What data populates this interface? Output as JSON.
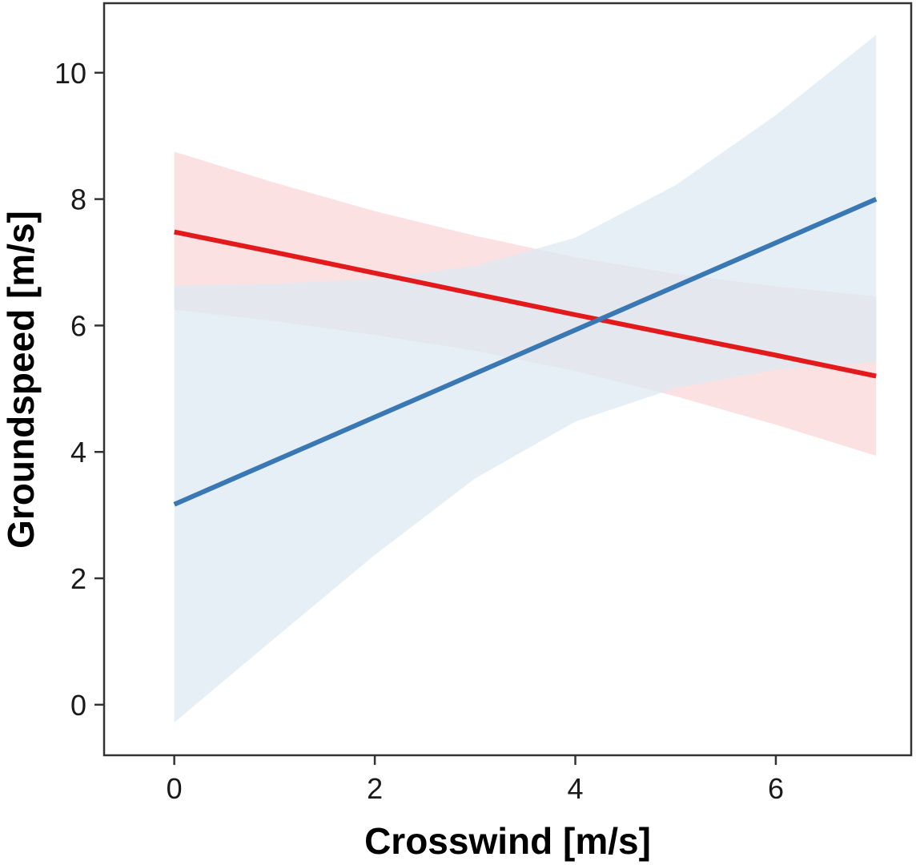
{
  "chart_data": {
    "type": "line",
    "title": "",
    "xlabel": "Crosswind [m/s]",
    "ylabel": "Groundspeed [m/s]",
    "xlim": [
      -0.7,
      7.35
    ],
    "ylim": [
      -0.8,
      11.1
    ],
    "xticks": [
      0,
      2,
      4,
      6
    ],
    "yticks": [
      0,
      2,
      4,
      6,
      8,
      10
    ],
    "grid": false,
    "legend": "none",
    "x": [
      0,
      1,
      2,
      3,
      4,
      5,
      6,
      7
    ],
    "series": [
      {
        "name": "red",
        "color": "#e31a1c",
        "band_color": "#fbd5d7",
        "values": [
          7.48,
          7.16,
          6.83,
          6.5,
          6.17,
          5.85,
          5.53,
          5.2
        ],
        "lower": [
          6.25,
          6.07,
          5.85,
          5.6,
          5.28,
          4.88,
          4.43,
          3.94
        ],
        "upper": [
          8.75,
          8.26,
          7.81,
          7.42,
          7.08,
          6.82,
          6.62,
          6.46
        ]
      },
      {
        "name": "blue",
        "color": "#3a78b4",
        "band_color": "#dde9f3",
        "values": [
          3.17,
          3.86,
          4.55,
          5.24,
          5.93,
          6.62,
          7.31,
          8.0
        ],
        "lower": [
          -0.28,
          1.05,
          2.37,
          3.58,
          4.48,
          5.01,
          5.3,
          5.42
        ],
        "upper": [
          6.63,
          6.66,
          6.74,
          6.94,
          7.39,
          8.22,
          9.33,
          10.6
        ]
      }
    ]
  }
}
